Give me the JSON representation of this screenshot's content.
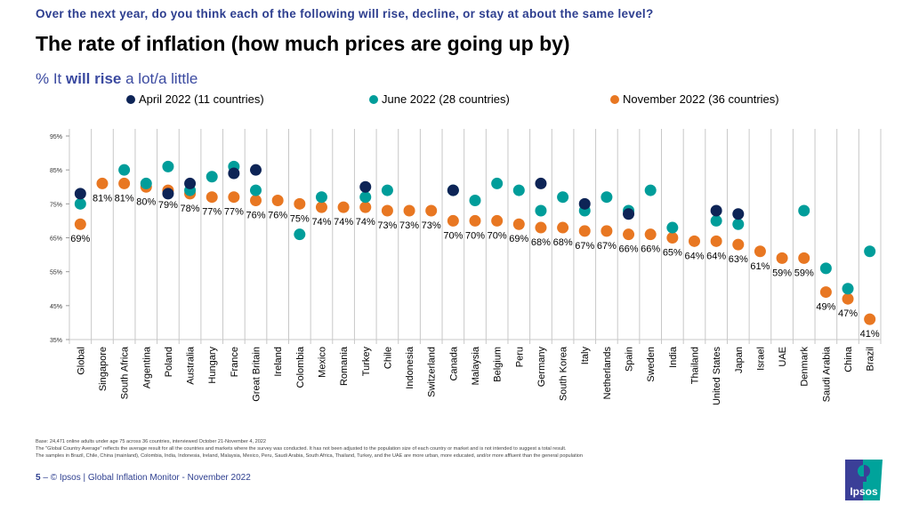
{
  "header": {
    "question": "Over the next year, do you think each of the following will rise, decline, or stay at about the same level?",
    "title": "The rate of inflation (how much prices are going up by)",
    "subtitle_prefix": "% It ",
    "subtitle_bold": "will rise",
    "subtitle_suffix": " a lot/a little"
  },
  "colors": {
    "april": "#0d2456",
    "june": "#009d9a",
    "november": "#e87722",
    "gridline": "#c8c8c8",
    "brand_blue": "#2d3e8f"
  },
  "chart_data": {
    "type": "scatter",
    "title": "The rate of inflation (how much prices are going up by)",
    "xlabel": "",
    "ylabel": "% It will rise a lot/a little",
    "ylim": [
      35,
      95
    ],
    "yticks": [
      35,
      45,
      55,
      65,
      75,
      85,
      95
    ],
    "ytick_labels": [
      "35%",
      "45%",
      "55%",
      "65%",
      "75%",
      "85%",
      "95%"
    ],
    "grid": "vertical separators between categories",
    "legend_position": "top",
    "categories": [
      "Global",
      "Singapore",
      "South Africa",
      "Argentina",
      "Poland",
      "Australia",
      "Hungary",
      "France",
      "Great Britain",
      "Ireland",
      "Colombia",
      "Mexico",
      "Romania",
      "Turkey",
      "Chile",
      "Indonesia",
      "Switzerland",
      "Canada",
      "Malaysia",
      "Belgium",
      "Peru",
      "Germany",
      "South Korea",
      "Italy",
      "Netherlands",
      "Spain",
      "Sweden",
      "India",
      "Thailand",
      "United States",
      "Japan",
      "Israel",
      "UAE",
      "Denmark",
      "Saudi Arabia",
      "China",
      "Brazil"
    ],
    "series": [
      {
        "name": "April 2022 (11 countries)",
        "key": "april",
        "values": [
          78,
          null,
          null,
          null,
          78,
          81,
          null,
          84,
          85,
          null,
          null,
          null,
          null,
          80,
          null,
          null,
          null,
          79,
          null,
          null,
          null,
          81,
          null,
          75,
          null,
          72,
          null,
          null,
          null,
          73,
          72,
          null,
          null,
          null,
          null,
          null,
          null
        ]
      },
      {
        "name": "June 2022 (28 countries)",
        "key": "june",
        "values": [
          75,
          null,
          85,
          81,
          86,
          79,
          83,
          86,
          79,
          null,
          66,
          77,
          null,
          77,
          79,
          null,
          null,
          79,
          76,
          81,
          79,
          73,
          77,
          73,
          77,
          73,
          79,
          68,
          null,
          70,
          69,
          null,
          null,
          73,
          56,
          50,
          61
        ]
      },
      {
        "name": "November 2022 (36 countries)",
        "key": "november",
        "values": [
          69,
          81,
          81,
          80,
          79,
          78,
          77,
          77,
          76,
          76,
          75,
          74,
          74,
          74,
          73,
          73,
          73,
          70,
          70,
          70,
          69,
          68,
          68,
          67,
          67,
          66,
          66,
          65,
          64,
          64,
          63,
          61,
          59,
          59,
          49,
          47,
          41
        ],
        "data_labels": [
          "69%",
          "81%",
          "81%",
          "80%",
          "79%",
          "78%",
          "77%",
          "77%",
          "76%",
          "76%",
          "75%",
          "74%",
          "74%",
          "74%",
          "73%",
          "73%",
          "73%",
          "70%",
          "70%",
          "70%",
          "69%",
          "68%",
          "68%",
          "67%",
          "67%",
          "66%",
          "66%",
          "65%",
          "64%",
          "64%",
          "63%",
          "61%",
          "59%",
          "59%",
          "49%",
          "47%",
          "41%"
        ]
      }
    ]
  },
  "footnotes": [
    "Base: 24,471 online adults under age 75 across 36 countries, interviewed October 21-November 4, 2022",
    "The \"Global Country Average\" reflects the average result for all the countries and markets where the survey was conducted. It has not been adjusted to the population size of each country or market and is not intended to suggest a total result.",
    "The samples in Brazil, Chile, China (mainland), Colombia, India, Indonesia, Ireland, Malaysia, Mexico, Peru, Saudi Arabia, South Africa, Thailand, Turkey, and the UAE are more urban, more educated, and/or more affluent than the general population"
  ],
  "footer": {
    "page_number": "5",
    "separator": " – ",
    "text": "© Ipsos | Global Inflation Monitor - November 2022"
  },
  "logo": {
    "text": "Ipsos"
  }
}
